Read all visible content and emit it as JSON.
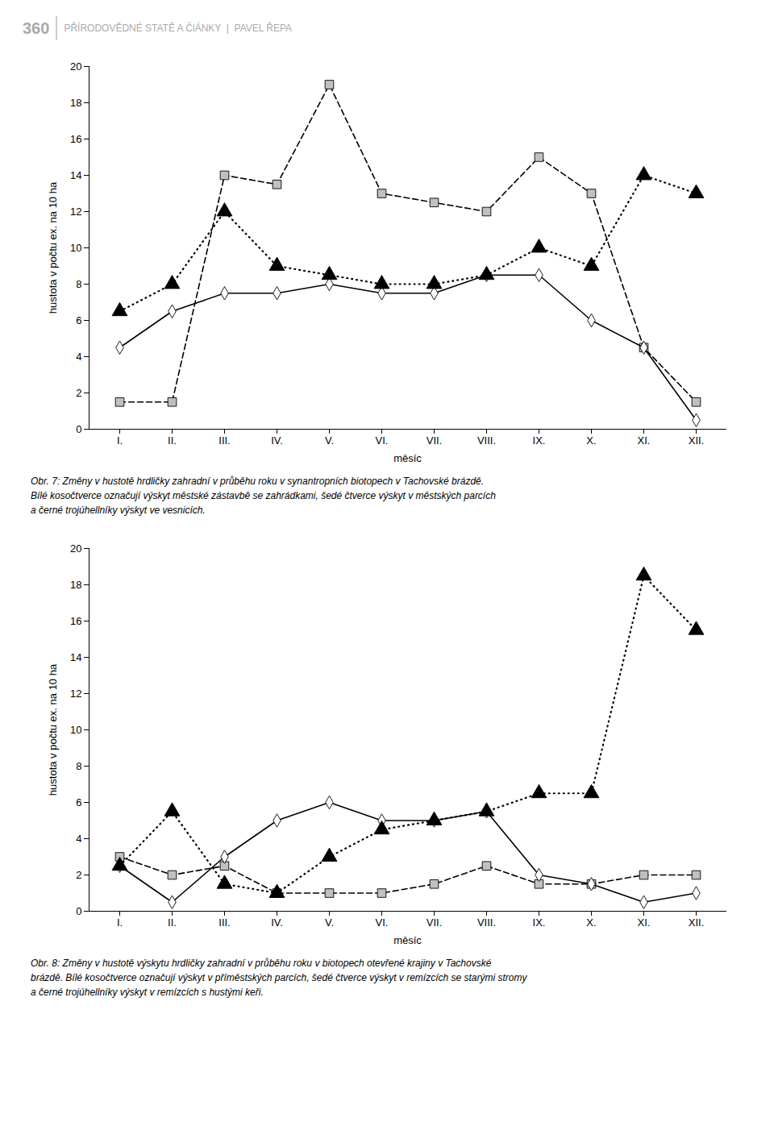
{
  "annotations": [
    "360",
    "PŘÍRODOVĚDNÉ STATĚ A ČlÁNKY  |  PAVEL ŘEPA"
  ],
  "chart_data": [
    {
      "type": "line",
      "categories": [
        "I.",
        "II.",
        "III.",
        "IV.",
        "V.",
        "VI.",
        "VII.",
        "VIII.",
        "IX.",
        "X.",
        "XI.",
        "XII."
      ],
      "series": [
        {
          "color": "#c0c0c0",
          "marker": "square",
          "line_style": "dashed",
          "values": [
            1.5,
            1.5,
            14.0,
            13.5,
            19.0,
            13.0,
            12.5,
            12.0,
            15.0,
            13.0,
            4.5,
            1.5
          ]
        },
        {
          "color": "#ffffff",
          "marker": "diamond",
          "line_style": "solid",
          "values": [
            4.5,
            6.5,
            7.5,
            7.5,
            8.0,
            7.5,
            7.5,
            8.5,
            8.5,
            6.0,
            4.5,
            0.5
          ]
        },
        {
          "color": "#000000",
          "marker": "triangle",
          "line_style": "dotted",
          "values": [
            6.5,
            8.0,
            12.0,
            9.0,
            8.5,
            8.0,
            8.0,
            8.5,
            10.0,
            9.0,
            14.0,
            13.0
          ]
        }
      ],
      "xlabel": "měsíc",
      "ylabel": "hustota v počtu ex. na 10 ha",
      "ylim": [
        0,
        20
      ],
      "yticks": [
        0,
        2,
        4,
        6,
        8,
        10,
        12,
        14,
        16,
        18,
        20
      ],
      "grid": false,
      "caption": [
        "Obr. 7: Změny v hustotě hrdličky zahradní v průběhu roku v synantropních biotopech v Tachovské brázdě.",
        "Bílé kosočtverce označují výskyt městské zástavbě se zahrádkami, šedé čtverce výskyt v městských parcích",
        "a černé trojúhellníky výskyt ve vesnicích."
      ]
    },
    {
      "type": "line",
      "categories": [
        "I.",
        "II.",
        "III.",
        "IV.",
        "V.",
        "VI.",
        "VII.",
        "VIII.",
        "IX.",
        "X.",
        "XI.",
        "XII."
      ],
      "series": [
        {
          "color": "#c0c0c0",
          "marker": "square",
          "line_style": "dashed",
          "values": [
            3.0,
            2.0,
            2.5,
            1.0,
            1.0,
            1.0,
            1.5,
            2.5,
            1.5,
            1.5,
            2.0,
            2.0
          ]
        },
        {
          "color": "#ffffff",
          "marker": "diamond",
          "line_style": "solid",
          "values": [
            2.5,
            0.5,
            3.0,
            5.0,
            6.0,
            5.0,
            5.0,
            5.5,
            2.0,
            1.5,
            0.5,
            1.0
          ]
        },
        {
          "color": "#000000",
          "marker": "triangle",
          "line_style": "dotted",
          "values": [
            2.5,
            5.5,
            1.5,
            1.0,
            3.0,
            4.5,
            5.0,
            5.5,
            6.5,
            6.5,
            18.5,
            15.5
          ]
        }
      ],
      "xlabel": "měsíc",
      "ylabel": "hustota v počtu ex. na 10 ha",
      "ylim": [
        0,
        20
      ],
      "yticks": [
        0,
        2,
        4,
        6,
        8,
        10,
        12,
        14,
        16,
        18,
        20
      ],
      "grid": false,
      "caption": [
        "Obr. 8: Změny v hustotě výskytu hrdličky zahradní v průběhu roku v biotopech otevřené krajiny v Tachovské",
        "brázdě. Bílé kosočtverce označují výskyt v příměstských parcích, šedé čtverce výskyt v remízcích se starými stromy",
        "a černé trojúhellníky výskyt v remízcích s hustými keři."
      ]
    }
  ]
}
